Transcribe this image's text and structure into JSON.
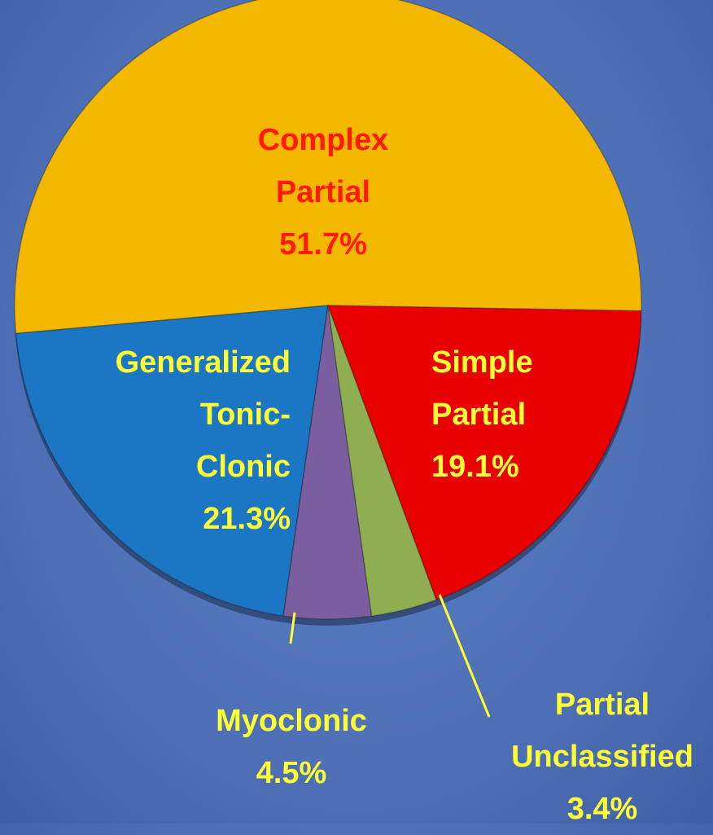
{
  "chart_data": {
    "type": "pie",
    "categories": [
      "Complex Partial",
      "Generalized Tonic-Clonic",
      "Myoclonic",
      "Partial Unclassified",
      "Simple Partial"
    ],
    "values": [
      51.7,
      21.3,
      4.5,
      3.4,
      19.1
    ],
    "value_labels": [
      "51.7%",
      "21.3%",
      "4.5%",
      "3.4%",
      "19.1%"
    ],
    "colors": [
      "#f5b800",
      "#1b76c4",
      "#7b5e9e",
      "#8fae52",
      "#e80000"
    ],
    "label_colors": [
      "#ff1a00",
      "#ffff33",
      "#ffff33",
      "#ffff33",
      "#ffff33"
    ]
  }
}
